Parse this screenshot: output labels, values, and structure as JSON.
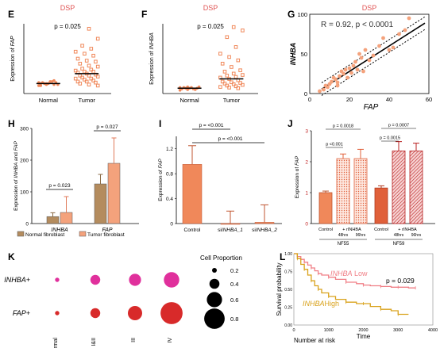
{
  "panels": {
    "E": "E",
    "F": "F",
    "G": "G",
    "H": "H",
    "I": "I",
    "J": "J",
    "K": "K",
    "L": "L"
  },
  "colors": {
    "orange": "#f0885a",
    "orange_light": "#f4a27c",
    "red": "#d82a2a",
    "tan": "#b48c5e",
    "pink": "#e0309c",
    "km_pink": "#f07f86",
    "km_gold": "#d9a21b"
  },
  "chart_data": [
    {
      "panel": "E",
      "type": "scatter",
      "title": "DSP",
      "annotation": "p = 0.025",
      "ylabel_prefix": "Expression of ",
      "ylabel_gene": "FAP",
      "categories": [
        "Normal",
        "Tumor"
      ],
      "means": [
        10,
        20
      ],
      "series": [
        {
          "category": "Normal",
          "values": [
            8,
            9,
            9,
            10,
            10,
            11,
            11,
            12,
            9,
            10,
            12,
            11,
            10,
            13,
            8
          ]
        },
        {
          "category": "Tumor",
          "values": [
            65,
            55,
            48,
            45,
            42,
            40,
            38,
            35,
            33,
            32,
            30,
            28,
            27,
            25,
            24,
            23,
            22,
            22,
            21,
            20,
            19,
            18,
            18,
            17,
            16,
            15,
            15,
            14,
            13,
            12,
            12,
            11,
            10,
            9,
            8
          ]
        }
      ]
    },
    {
      "panel": "F",
      "type": "scatter",
      "title": "DSP",
      "annotation": "p = 0.025",
      "ylabel_prefix": "Expression of ",
      "ylabel_gene": "INHBA",
      "categories": [
        "Normal",
        "Tumor"
      ],
      "means": [
        8,
        22
      ],
      "series": [
        {
          "category": "Normal",
          "values": [
            5,
            6,
            7,
            7,
            8,
            8,
            9,
            9,
            10,
            8,
            7,
            9,
            10,
            6
          ]
        },
        {
          "category": "Tumor",
          "values": [
            100,
            95,
            85,
            70,
            60,
            55,
            50,
            45,
            40,
            35,
            33,
            30,
            28,
            27,
            25,
            24,
            22,
            20,
            18,
            17,
            16,
            15,
            14,
            13,
            12,
            11,
            10,
            9,
            8
          ]
        }
      ]
    },
    {
      "panel": "G",
      "type": "scatter",
      "title": "DSP",
      "annotation": "R = 0.92, p < 0.0001",
      "xlabel": "FAP",
      "ylabel": "INHBA",
      "xlim": [
        0,
        60
      ],
      "ylim": [
        0,
        100
      ],
      "xticks": [
        "0",
        "20",
        "40",
        "60"
      ],
      "yticks": [
        "0",
        "50",
        "100"
      ],
      "points": [
        [
          5,
          3
        ],
        [
          7,
          5
        ],
        [
          8,
          10
        ],
        [
          9,
          8
        ],
        [
          10,
          12
        ],
        [
          11,
          15
        ],
        [
          12,
          20
        ],
        [
          13,
          18
        ],
        [
          14,
          14
        ],
        [
          15,
          22
        ],
        [
          16,
          28
        ],
        [
          17,
          25
        ],
        [
          18,
          30
        ],
        [
          20,
          32
        ],
        [
          21,
          26
        ],
        [
          22,
          35
        ],
        [
          23,
          40
        ],
        [
          25,
          50
        ],
        [
          26,
          45
        ],
        [
          28,
          55
        ],
        [
          30,
          42
        ],
        [
          32,
          48
        ],
        [
          35,
          60
        ],
        [
          37,
          70
        ],
        [
          40,
          55
        ],
        [
          42,
          58
        ],
        [
          45,
          75
        ],
        [
          48,
          80
        ],
        [
          50,
          95
        ],
        [
          14,
          10
        ],
        [
          19,
          20
        ],
        [
          24,
          30
        ],
        [
          27,
          28
        ]
      ],
      "fit": {
        "slope": 1.6,
        "intercept": -4
      }
    },
    {
      "panel": "H",
      "type": "bar",
      "ylabel_prefix": "Expression of ",
      "ylabel_gene1": "INHBA",
      "ylabel_mid": " and ",
      "ylabel_gene2": "FAP",
      "categories": [
        "INHBA",
        "FAP"
      ],
      "ylim": [
        0,
        300
      ],
      "yticks": [
        "0",
        "100",
        "200",
        "300"
      ],
      "series": [
        {
          "name": "Normal fibroblast",
          "values": [
            22,
            125
          ],
          "errors": [
            12,
            30
          ]
        },
        {
          "name": "Tumor fibroblast",
          "values": [
            35,
            190
          ],
          "errors": [
            50,
            80
          ]
        }
      ],
      "annotations": [
        "p = 0.023",
        "p = 0.027"
      ]
    },
    {
      "panel": "I",
      "type": "bar",
      "ylabel_prefix": "Expression of ",
      "ylabel_gene": "FAP",
      "categories": [
        "Control",
        "siINHBA_1",
        "siINHBA_2"
      ],
      "category_prefix": "si",
      "category_genes": [
        "INHBA_1",
        "INHBA_2"
      ],
      "values": [
        0.95,
        0.0,
        0.02
      ],
      "errors": [
        0.3,
        0.2,
        0.28
      ],
      "ylim": [
        0,
        1.4
      ],
      "yticks": [
        "0",
        "0.4",
        "0.8",
        "1.2"
      ],
      "annotations": [
        "p = <0.001",
        "p = <0.001"
      ]
    },
    {
      "panel": "J",
      "type": "bar",
      "ylabel_prefix": "Expression of ",
      "ylabel_gene": "FAP",
      "groups": [
        "NF55",
        "NF59"
      ],
      "categories": [
        "Control",
        "+ rINHBA 48hrs",
        "96hrs",
        "Control",
        "+ rINHBA 48hrs",
        "96hrs"
      ],
      "tick_labels": {
        "control": "Control",
        "rinhba": "+ rINHBA",
        "h48": "48hrs",
        "h96": "96hrs"
      },
      "values": [
        1.0,
        2.1,
        2.1,
        1.15,
        2.35,
        2.35
      ],
      "errors": [
        0.05,
        0.15,
        0.3,
        0.07,
        0.3,
        0.25
      ],
      "ylim": [
        0,
        3
      ],
      "yticks": [
        "0",
        "1",
        "2",
        "3"
      ],
      "annotations": [
        "p = 0.0018",
        "p <0.001",
        "p = 0.0007",
        "p = 0.0015"
      ]
    },
    {
      "panel": "K",
      "type": "scatter",
      "rows": [
        "INHBA+",
        "FAP+"
      ],
      "columns": [
        "Normal",
        "I&II",
        "III",
        "IV"
      ],
      "columns_visible": [
        "rmal",
        "I&II",
        "III",
        "IV"
      ],
      "sizes": [
        [
          0.05,
          0.3,
          0.4,
          0.55
        ],
        [
          0.05,
          0.3,
          0.5,
          0.85
        ]
      ],
      "legend_title": "Cell Proportion",
      "legend_values": [
        "0.2",
        "0.4",
        "0.6",
        "0.8"
      ]
    },
    {
      "panel": "L",
      "type": "line",
      "ylabel": "Survival probability",
      "xlabel": "Time",
      "subtitle": "Number at risk",
      "xticks": [
        "0",
        "1000",
        "2000",
        "3000",
        "4000"
      ],
      "yticks": [
        "0.00",
        "0.25",
        "0.50",
        "0.75",
        "1.00"
      ],
      "annotation": "p = 0.029",
      "series": [
        {
          "name_gene": "INHBA",
          "name_suffix": " Low",
          "x": [
            0,
            100,
            200,
            300,
            400,
            500,
            600,
            700,
            800,
            1000,
            1200,
            1500,
            1800,
            2000,
            2200,
            2500,
            2800,
            3000,
            3300,
            3500
          ],
          "y": [
            1.0,
            0.96,
            0.92,
            0.88,
            0.84,
            0.8,
            0.76,
            0.72,
            0.7,
            0.67,
            0.64,
            0.6,
            0.58,
            0.56,
            0.55,
            0.54,
            0.53,
            0.53,
            0.52,
            0.52
          ]
        },
        {
          "name_gene": "INHBA",
          "name_suffix": "High",
          "x": [
            0,
            100,
            200,
            300,
            400,
            500,
            600,
            700,
            800,
            1000,
            1200,
            1500,
            1800,
            2000,
            2200,
            2500,
            2800,
            3000,
            3300
          ],
          "y": [
            1.0,
            0.93,
            0.85,
            0.78,
            0.7,
            0.62,
            0.55,
            0.5,
            0.45,
            0.4,
            0.36,
            0.32,
            0.3,
            0.3,
            0.26,
            0.22,
            0.2,
            0.15,
            0.15
          ]
        }
      ]
    }
  ]
}
